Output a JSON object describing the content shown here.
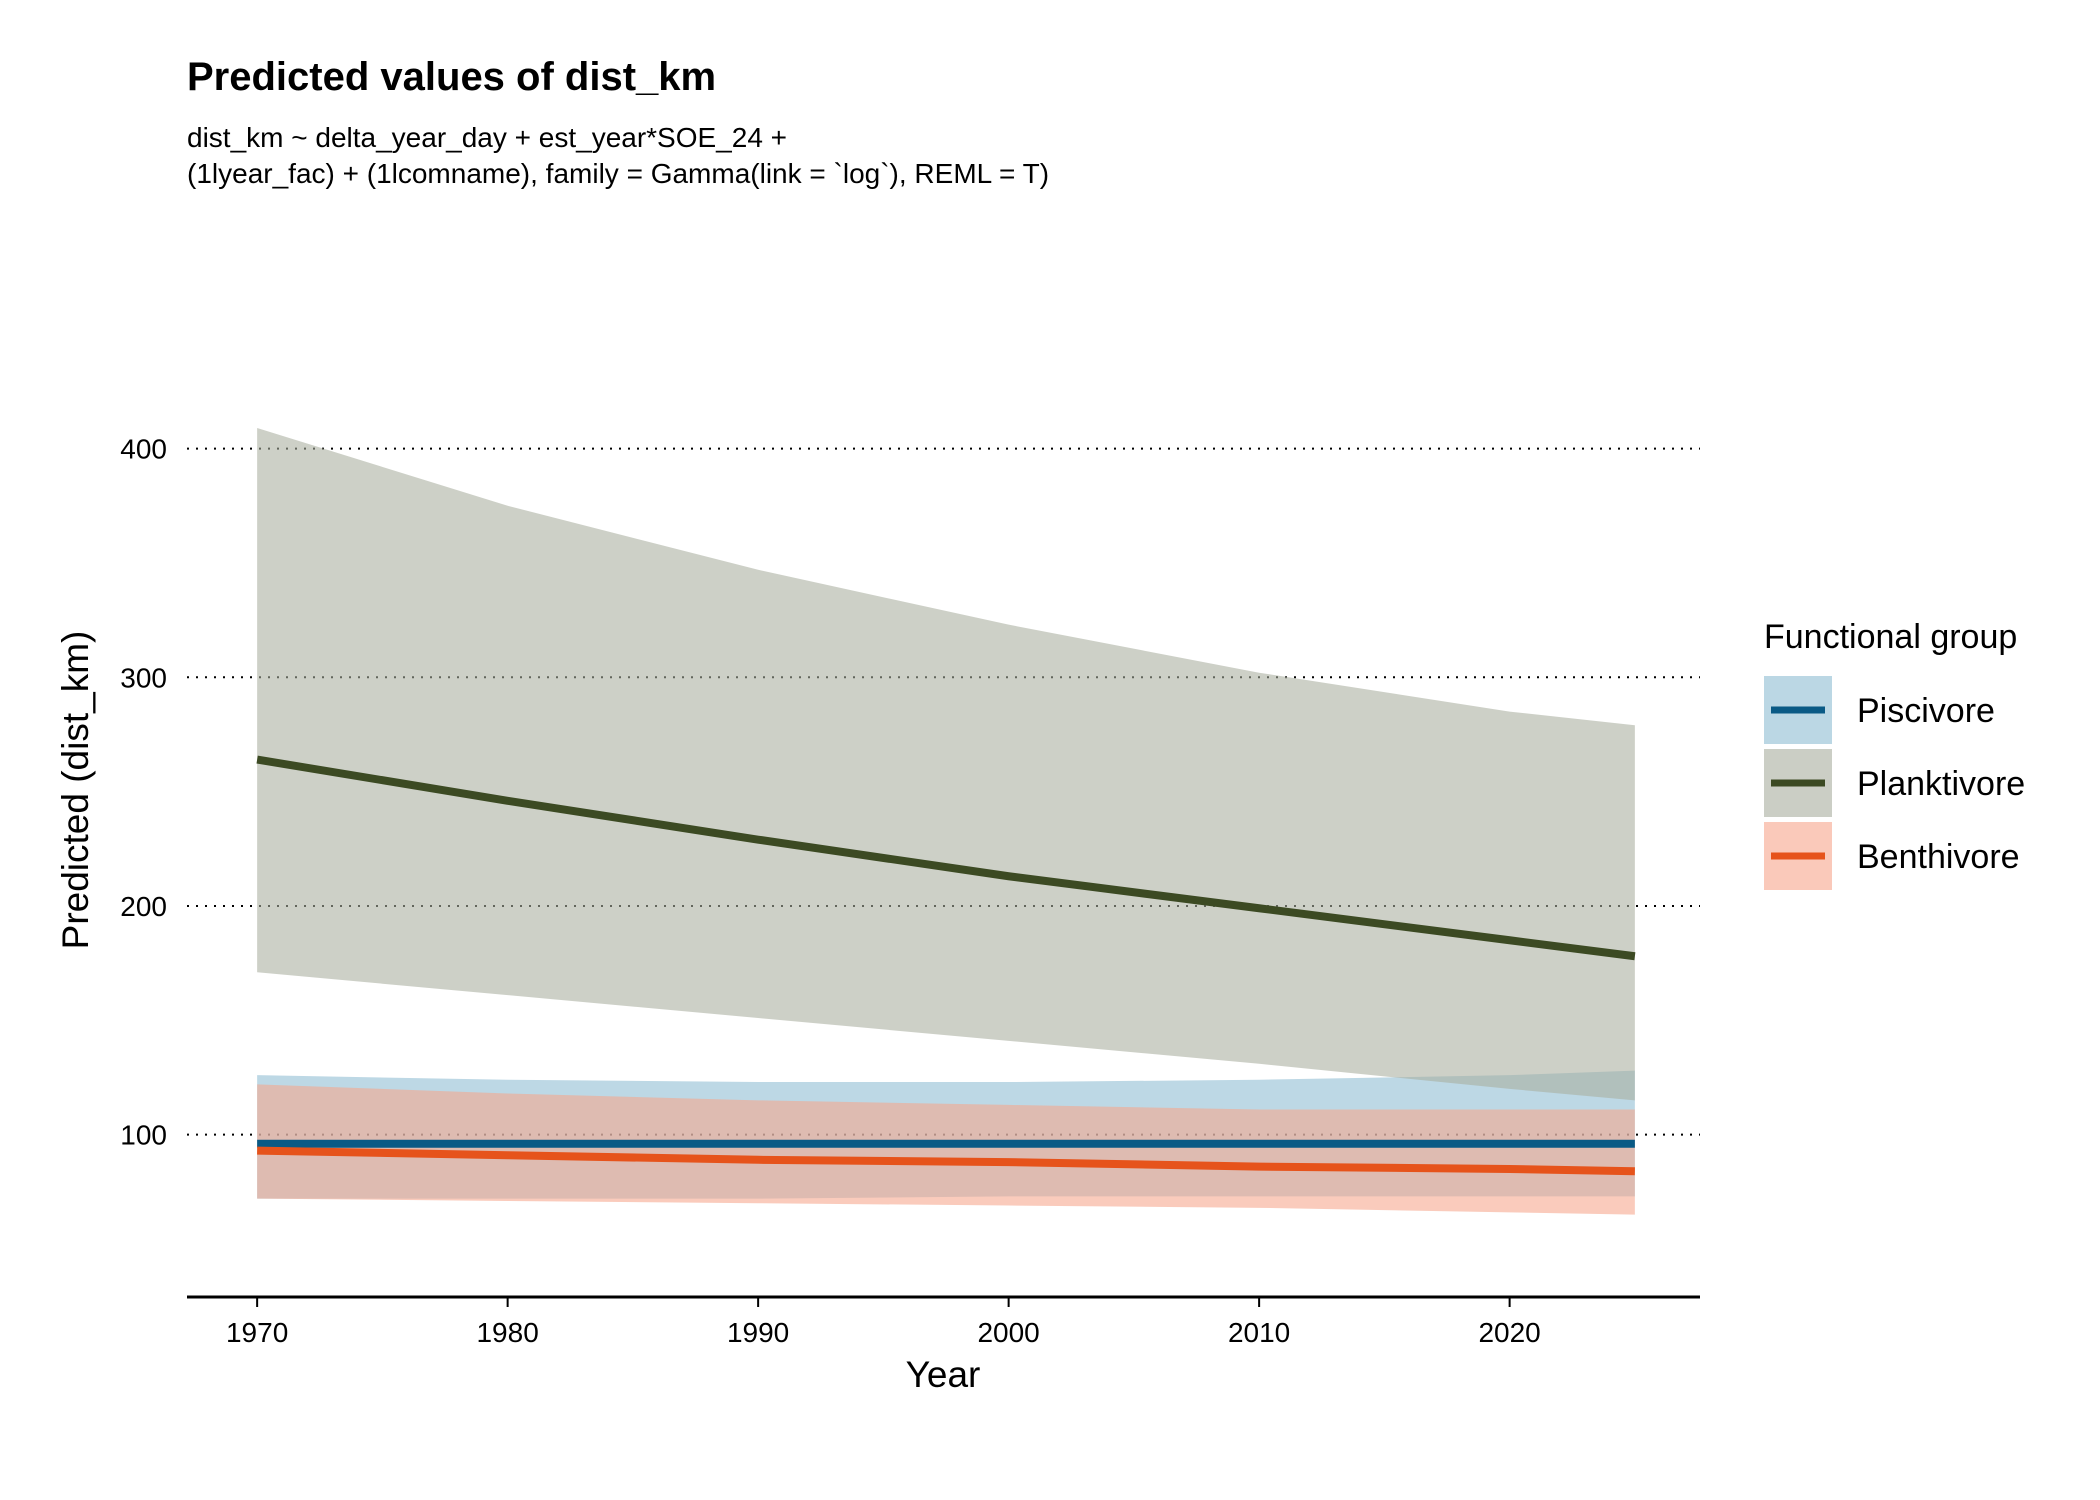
{
  "chart_data": {
    "type": "line",
    "title": "Predicted values of dist_km",
    "subtitle_lines": [
      "dist_km ~ delta_year_day + est_year*SOE_24 +",
      "(1lyear_fac) + (1lcomname), family = Gamma(link = `log`), REML = T)"
    ],
    "xlabel": "Year",
    "ylabel": "Predicted (dist_km)",
    "x_ticks": [
      1970,
      1980,
      1990,
      2000,
      2010,
      2020
    ],
    "y_ticks": [
      100,
      200,
      300,
      400
    ],
    "xlim": [
      1967.2,
      2027.6
    ],
    "ylim": [
      29,
      430
    ],
    "grid": "major y dotted",
    "legend": {
      "title": "Functional group",
      "position": "right"
    },
    "x": [
      1970,
      1980,
      1990,
      2000,
      2010,
      2020,
      2025
    ],
    "series": [
      {
        "name": "Piscivore",
        "color": "#0a5a85",
        "ribbon_color": "#8dbcd2",
        "values": [
          96,
          96,
          96,
          96,
          96,
          96,
          96
        ],
        "lower": [
          72,
          72,
          72,
          73,
          73,
          73,
          73
        ],
        "upper": [
          126,
          124,
          123,
          123,
          124,
          126,
          128
        ]
      },
      {
        "name": "Planktivore",
        "color": "#3c4a23",
        "ribbon_color": "#a9ae9e",
        "values": [
          264,
          246,
          229,
          213,
          199,
          185,
          178
        ],
        "lower": [
          171,
          161,
          151,
          141,
          131,
          120,
          115
        ],
        "upper": [
          409,
          375,
          347,
          323,
          302,
          285,
          279
        ]
      },
      {
        "name": "Benthivore",
        "color": "#e6531b",
        "ribbon_color": "#f6a58c",
        "values": [
          93,
          91,
          89,
          88,
          86,
          85,
          84
        ],
        "lower": [
          72,
          71,
          70,
          69,
          68,
          66,
          65
        ],
        "upper": [
          122,
          118,
          115,
          113,
          111,
          111,
          111
        ]
      }
    ]
  }
}
